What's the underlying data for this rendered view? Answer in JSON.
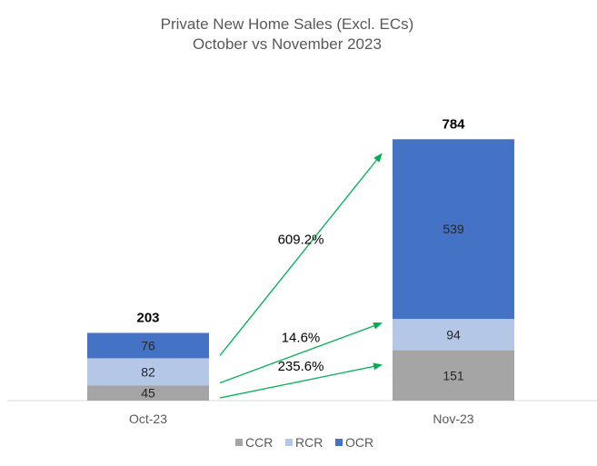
{
  "chart_data": {
    "type": "bar",
    "stacked": true,
    "title_line1": "Private New Home Sales (Excl. ECs)",
    "title_line2": "October vs November 2023",
    "categories": [
      "Oct-23",
      "Nov-23"
    ],
    "series": [
      {
        "name": "CCR",
        "values": [
          45,
          151
        ],
        "color": "#a5a5a5"
      },
      {
        "name": "RCR",
        "values": [
          82,
          94
        ],
        "color": "#b4c7e7"
      },
      {
        "name": "OCR",
        "values": [
          76,
          539
        ],
        "color": "#4472c4"
      }
    ],
    "totals": [
      203,
      784
    ],
    "changes": [
      {
        "series": "OCR",
        "label": "609.2%"
      },
      {
        "series": "RCR",
        "label": "14.6%"
      },
      {
        "series": "CCR",
        "label": "235.6%"
      }
    ],
    "arrow_color": "#00b050",
    "legend_position": "bottom",
    "grid": false
  }
}
